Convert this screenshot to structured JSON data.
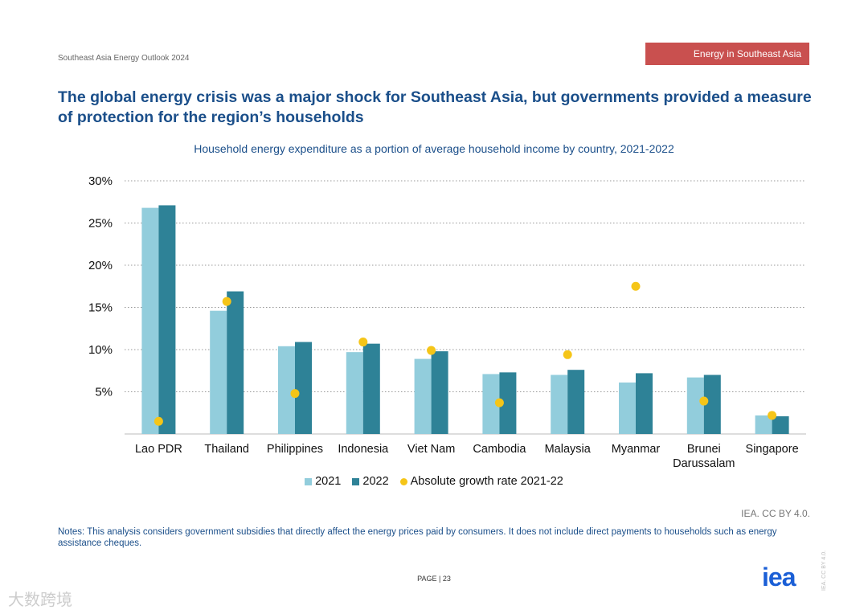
{
  "header": {
    "doc_title": "Southeast Asia Energy Outlook 2024",
    "section_tag": "Energy in Southeast Asia",
    "section_color": "#c9504f"
  },
  "headline": "The global energy crisis was a major shock for Southeast Asia, but governments provided a measure of protection for the region’s households",
  "chart_data": {
    "type": "bar",
    "title": "Household energy expenditure as a portion of average household income by country, 2021-2022",
    "xlabel": "",
    "ylabel": "",
    "ylim": [
      0,
      30
    ],
    "yticks": [
      "5%",
      "10%",
      "15%",
      "20%",
      "25%",
      "30%"
    ],
    "ytick_values": [
      5,
      10,
      15,
      20,
      25,
      30
    ],
    "grid": true,
    "legend_position": "bottom",
    "categories": [
      "Lao PDR",
      "Thailand",
      "Philippines",
      "Indonesia",
      "Viet Nam",
      "Cambodia",
      "Malaysia",
      "Myanmar",
      "Brunei Darussalam",
      "Singapore"
    ],
    "series": [
      {
        "name": "2021",
        "type": "bar",
        "color": "#92cddc",
        "values": [
          26.8,
          14.6,
          10.4,
          9.7,
          8.9,
          7.1,
          7.0,
          6.1,
          6.7,
          2.2
        ]
      },
      {
        "name": "2022",
        "type": "bar",
        "color": "#2e8297",
        "values": [
          27.1,
          16.9,
          10.9,
          10.7,
          9.8,
          7.3,
          7.6,
          7.2,
          7.0,
          2.1
        ]
      },
      {
        "name": "Absolute growth rate 2021-22",
        "type": "scatter",
        "color": "#f5c518",
        "values": [
          1.5,
          15.7,
          4.8,
          10.9,
          9.9,
          3.7,
          9.4,
          17.5,
          3.9,
          2.2
        ]
      }
    ]
  },
  "footer": {
    "credit": "IEA. CC BY 4.0.",
    "notes": "Notes: This analysis considers government subsidies that directly affect the energy prices paid by consumers. It does not include direct payments to households such as energy assistance cheques.",
    "page": "PAGE | 23",
    "logo": "iea",
    "side_credit": "IEA. CC BY 4.0.",
    "watermark": "大数跨境"
  }
}
